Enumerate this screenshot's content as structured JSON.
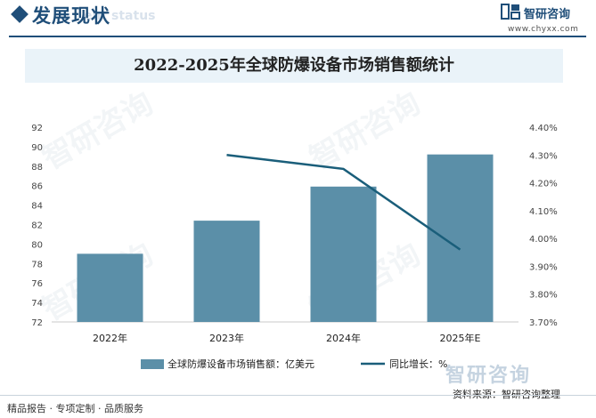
{
  "header": {
    "section_title": "发展现状",
    "section_subtitle": "ent status",
    "logo_text": "智研咨询",
    "logo_url": "www.chyxx.com"
  },
  "chart_data": {
    "type": "bar",
    "title": "2022-2025年全球防爆设备市场销售额统计",
    "categories": [
      "2022年",
      "2023年",
      "2024年",
      "2025年E"
    ],
    "series": [
      {
        "name": "全球防爆设备市场销售额：亿美元",
        "type": "bar",
        "axis": "left",
        "color": "#5b8fa8",
        "values": [
          79.0,
          82.4,
          85.9,
          89.2
        ]
      },
      {
        "name": "同比增长：%",
        "type": "line",
        "axis": "right",
        "color": "#1a5e7a",
        "values": [
          null,
          4.3,
          4.25,
          3.96
        ]
      }
    ],
    "ylim_left": [
      72,
      92
    ],
    "yticks_left": [
      "72",
      "74",
      "76",
      "78",
      "80",
      "82",
      "84",
      "86",
      "88",
      "90",
      "92"
    ],
    "ylim_right": [
      3.7,
      4.4
    ],
    "yticks_right": [
      "3.70%",
      "3.80%",
      "3.90%",
      "4.00%",
      "4.10%",
      "4.20%",
      "4.30%",
      "4.40%"
    ],
    "grid": false,
    "legend": "bottom"
  },
  "watermark_text": "智研咨询",
  "footer": {
    "left_text": "精品报告 · 专项定制 · 品质服务",
    "logo_text": "智研咨询",
    "source_text": "资料来源：智研咨询整理"
  }
}
